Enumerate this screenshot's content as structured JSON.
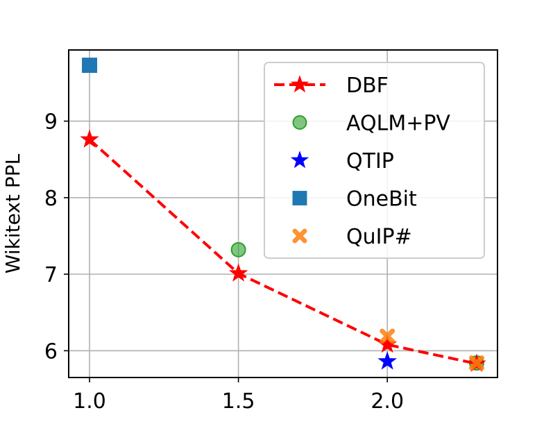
{
  "chart_data": {
    "type": "scatter",
    "title": "",
    "xlabel": "",
    "ylabel": "Wikitext PPL",
    "xlim": [
      0.93,
      2.37
    ],
    "ylim": [
      5.65,
      9.93
    ],
    "xticks": [
      1.0,
      1.5,
      2.0
    ],
    "xtick_labels": [
      "1.0",
      "1.5",
      "2.0"
    ],
    "yticks": [
      6,
      7,
      8,
      9
    ],
    "ytick_labels": [
      "6",
      "7",
      "8",
      "9"
    ],
    "grid": true,
    "legend_position": "top-right",
    "series": [
      {
        "name": "DBF",
        "style": "line-star",
        "color": "#ff0000",
        "points": [
          [
            1.0,
            8.76
          ],
          [
            1.5,
            7.01
          ],
          [
            2.0,
            6.08
          ],
          [
            2.3,
            5.83
          ]
        ]
      },
      {
        "name": "AQLM+PV",
        "style": "circle",
        "color": "#2ca02c",
        "points": [
          [
            1.5,
            7.32
          ],
          [
            2.3,
            5.84
          ]
        ]
      },
      {
        "name": "QTIP",
        "style": "star",
        "color": "#0000ff",
        "points": [
          [
            2.0,
            5.86
          ]
        ]
      },
      {
        "name": "OneBit",
        "style": "square",
        "color": "#1f77b4",
        "points": [
          [
            1.0,
            9.73
          ]
        ]
      },
      {
        "name": "QuIP#",
        "style": "cross",
        "color": "#ff7f0e",
        "points": [
          [
            2.0,
            6.19
          ],
          [
            2.3,
            5.84
          ]
        ]
      }
    ],
    "legend": [
      "DBF",
      "AQLM+PV",
      "QTIP",
      "OneBit",
      "QuIP#"
    ]
  }
}
